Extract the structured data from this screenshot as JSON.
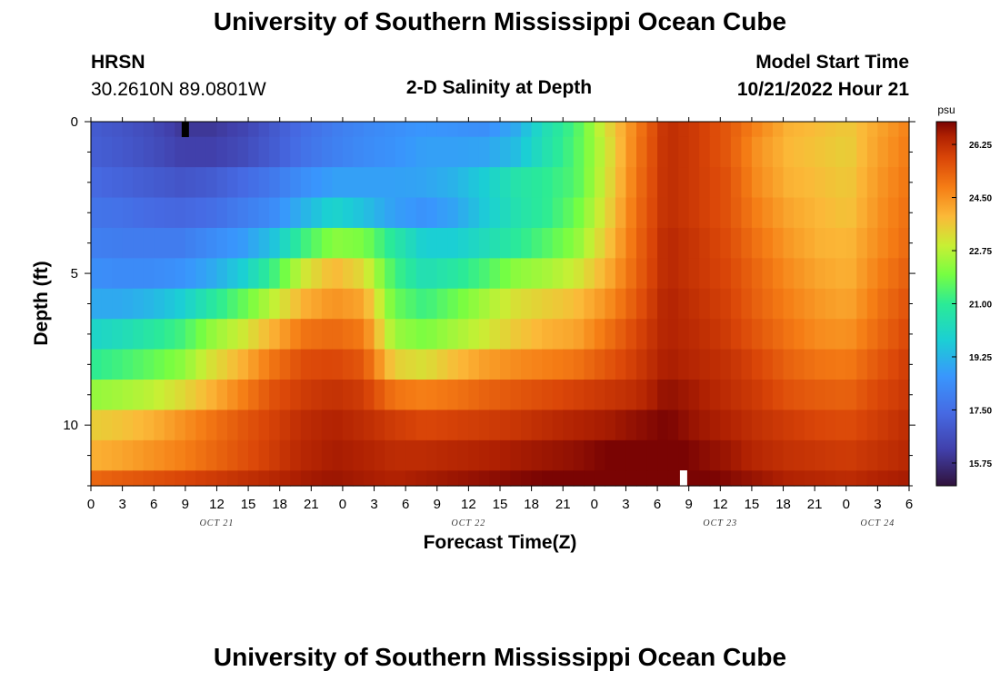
{
  "chart_data": {
    "type": "heatmap",
    "title": "University of Southern Mississippi Ocean Cube",
    "subtitle": "2-D Salinity at Depth",
    "station": {
      "name": "HRSN",
      "coords": "30.2610N  89.0801W"
    },
    "model_start": {
      "label": "Model Start Time",
      "value": "10/21/2022 Hour 21"
    },
    "xlabel": "Forecast Time(Z)",
    "ylabel": "Depth (ft)",
    "x_tick_labels": [
      "0",
      "3",
      "6",
      "9",
      "12",
      "15",
      "18",
      "21",
      "0",
      "3",
      "6",
      "9",
      "12",
      "15",
      "18",
      "21",
      "0",
      "3",
      "6",
      "9",
      "12",
      "15",
      "18",
      "21",
      "0",
      "3",
      "6"
    ],
    "date_labels": [
      {
        "label": "OCT 21",
        "hour_index": 12
      },
      {
        "label": "OCT 22",
        "hour_index": 36
      },
      {
        "label": "OCT 23",
        "hour_index": 60
      },
      {
        "label": "OCT 24",
        "hour_index": 75
      }
    ],
    "x_range_hours": [
      0,
      78
    ],
    "y_tick_labels": [
      "0",
      "5",
      "10"
    ],
    "y_ticks": [
      0,
      5,
      10
    ],
    "ylim": [
      0,
      12
    ],
    "layer_boundaries_ft": [
      0,
      0.5,
      1.5,
      2.5,
      3.5,
      4.5,
      5.5,
      6.5,
      7.5,
      8.5,
      9.5,
      10.5,
      11.5,
      12
    ],
    "colorbar": {
      "unit": "psu",
      "range": [
        15.0,
        27.0
      ],
      "tick_labels": [
        "26.25",
        "24.50",
        "22.75",
        "21.00",
        "19.25",
        "17.50",
        "15.75"
      ],
      "ticks": [
        26.25,
        24.5,
        22.75,
        21.0,
        19.25,
        17.5,
        15.75
      ]
    },
    "salinity_psu": [
      [
        17.0,
        16.8,
        16.5,
        16.0,
        16.0,
        16.3,
        16.9,
        17.5,
        17.9,
        18.2,
        18.4,
        18.6,
        18.5,
        18.4,
        19.0,
        20.4,
        21.4,
        23.2,
        24.8,
        26.3,
        26.0,
        25.5,
        24.7,
        24.0,
        23.8,
        23.6,
        24.2,
        24.8
      ],
      [
        17.1,
        16.9,
        16.6,
        16.2,
        16.2,
        16.5,
        17.0,
        17.6,
        18.0,
        18.3,
        18.5,
        18.8,
        18.8,
        18.9,
        19.4,
        20.5,
        21.5,
        23.0,
        24.9,
        26.3,
        26.0,
        25.5,
        24.5,
        23.9,
        23.7,
        23.5,
        24.3,
        24.9
      ],
      [
        17.4,
        17.2,
        17.0,
        16.8,
        17.0,
        17.4,
        17.8,
        18.4,
        18.8,
        18.8,
        18.8,
        18.9,
        19.2,
        19.8,
        20.6,
        21.0,
        21.5,
        23.1,
        25.0,
        26.3,
        26.0,
        25.6,
        24.6,
        24.0,
        23.8,
        23.6,
        24.4,
        25.0
      ],
      [
        17.7,
        17.6,
        17.4,
        17.3,
        17.5,
        17.9,
        18.3,
        19.2,
        20.0,
        19.5,
        18.8,
        18.5,
        18.9,
        19.7,
        20.5,
        21.0,
        21.8,
        23.3,
        25.1,
        26.3,
        26.0,
        25.6,
        24.8,
        24.2,
        23.9,
        23.7,
        24.5,
        25.1
      ],
      [
        18.0,
        17.9,
        17.9,
        17.9,
        18.3,
        18.7,
        19.5,
        21.2,
        22.2,
        22.0,
        20.8,
        19.8,
        19.8,
        20.3,
        20.9,
        21.5,
        22.2,
        23.6,
        25.2,
        26.4,
        26.1,
        25.7,
        25.0,
        24.4,
        24.0,
        23.9,
        24.6,
        25.2
      ],
      [
        18.4,
        18.3,
        18.3,
        18.5,
        19.0,
        19.8,
        21.2,
        23.0,
        23.9,
        23.3,
        21.3,
        20.4,
        20.8,
        21.4,
        22.2,
        22.5,
        23.0,
        24.0,
        25.3,
        26.4,
        26.1,
        25.8,
        25.2,
        24.6,
        24.2,
        24.0,
        24.8,
        25.4
      ],
      [
        19.0,
        19.0,
        19.3,
        19.8,
        20.8,
        21.7,
        22.8,
        24.0,
        24.5,
        24.2,
        21.8,
        21.2,
        21.8,
        22.5,
        23.2,
        23.5,
        23.8,
        24.5,
        25.5,
        26.5,
        26.2,
        25.9,
        25.3,
        24.8,
        24.4,
        24.2,
        25.0,
        25.6
      ],
      [
        20.0,
        20.3,
        20.8,
        21.3,
        22.3,
        23.0,
        24.0,
        25.0,
        25.2,
        24.9,
        22.4,
        22.0,
        22.5,
        23.0,
        23.6,
        24.0,
        24.2,
        25.0,
        25.8,
        26.5,
        26.3,
        26.0,
        25.5,
        25.0,
        24.6,
        24.5,
        25.2,
        25.8
      ],
      [
        21.0,
        21.3,
        21.7,
        22.2,
        23.2,
        24.0,
        25.0,
        25.7,
        25.8,
        25.5,
        23.5,
        23.2,
        23.8,
        24.3,
        24.6,
        24.8,
        25.0,
        25.5,
        26.0,
        26.6,
        26.4,
        26.2,
        25.8,
        25.3,
        25.0,
        24.9,
        25.5,
        26.0
      ],
      [
        22.3,
        22.5,
        22.8,
        23.3,
        24.0,
        24.8,
        25.6,
        26.0,
        26.2,
        26.0,
        25.0,
        24.8,
        25.0,
        25.3,
        25.5,
        25.7,
        25.9,
        26.1,
        26.3,
        26.8,
        26.6,
        26.3,
        26.0,
        25.6,
        25.4,
        25.3,
        25.8,
        26.1
      ],
      [
        23.5,
        23.7,
        24.0,
        24.5,
        25.0,
        25.5,
        25.9,
        26.3,
        26.5,
        26.3,
        26.0,
        25.8,
        25.9,
        26.0,
        26.1,
        26.3,
        26.5,
        26.6,
        26.8,
        27.0,
        26.7,
        26.5,
        26.2,
        26.0,
        25.8,
        25.7,
        26.0,
        26.3
      ],
      [
        24.0,
        24.2,
        24.5,
        24.8,
        25.2,
        25.6,
        26.0,
        26.4,
        26.6,
        26.5,
        26.3,
        26.3,
        26.4,
        26.5,
        26.6,
        26.7,
        26.8,
        27.0,
        27.3,
        27.2,
        26.9,
        26.7,
        26.4,
        26.2,
        26.1,
        26.0,
        26.2,
        26.4
      ],
      [
        25.2,
        25.4,
        25.6,
        25.8,
        26.0,
        26.2,
        26.4,
        26.6,
        26.7,
        26.6,
        26.5,
        26.6,
        26.7,
        26.8,
        26.9,
        27.0,
        27.1,
        27.2,
        27.3,
        27.3,
        27.1,
        26.9,
        26.7,
        26.5,
        26.4,
        26.3,
        26.5,
        26.6
      ]
    ],
    "markers": [
      {
        "hour": 9,
        "depth_ft": 0,
        "color": "#000000"
      },
      {
        "hour": 56.5,
        "depth_ft": 12,
        "color": "#ffffff"
      }
    ]
  },
  "footer_title": "University of Southern Mississippi Ocean Cube"
}
